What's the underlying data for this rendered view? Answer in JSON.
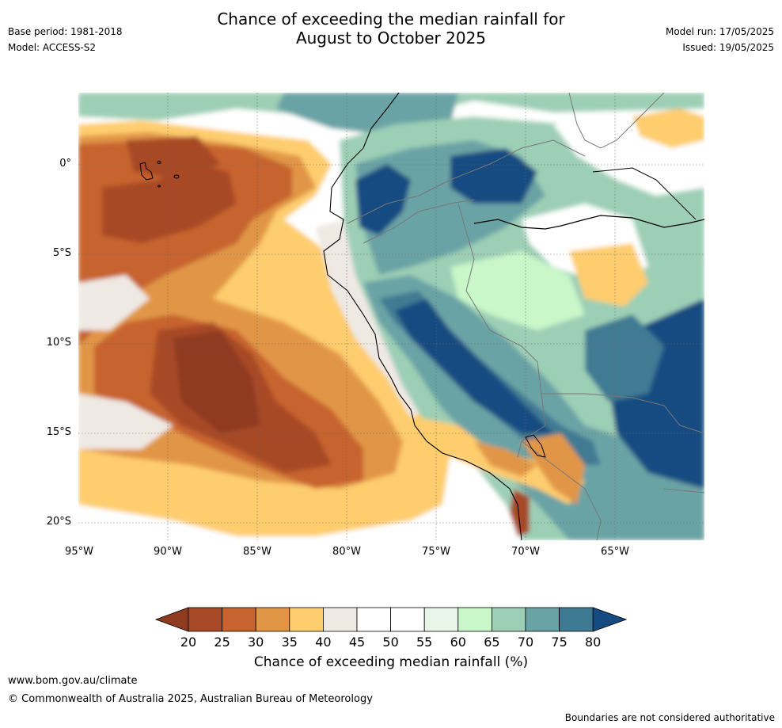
{
  "header": {
    "title_line1": "Chance of exceeding the median rainfall for",
    "title_line2": "August to October 2025",
    "base_period": "Base period: 1981-2018",
    "model": "Model: ACCESS-S2",
    "model_run": "Model run: 17/05/2025",
    "issued": "Issued: 19/05/2025"
  },
  "axes": {
    "lat_labels": [
      "0°",
      "5°S",
      "10°S",
      "15°S",
      "20°S"
    ],
    "lon_labels": [
      "95°W",
      "90°W",
      "85°W",
      "80°W",
      "75°W",
      "70°W",
      "65°W"
    ]
  },
  "colorbar": {
    "label": "Chance of exceeding median rainfall (%)",
    "ticks": [
      "20",
      "25",
      "30",
      "35",
      "40",
      "45",
      "50",
      "55",
      "60",
      "65",
      "70",
      "75",
      "80"
    ],
    "colors": [
      "#8e3b20",
      "#a84a27",
      "#c7632f",
      "#e19646",
      "#fecd6e",
      "#efe9e4",
      "#ffffff",
      "#ffffff",
      "#eaf5ea",
      "#c9f7c9",
      "#9dcfb6",
      "#6aa3a5",
      "#3f7a93",
      "#154b81"
    ]
  },
  "footer": {
    "url": "www.bom.gov.au/climate",
    "copyright": "© Commonwealth of Australia 2025, Australian Bureau of Meteorology",
    "disclaimer": "Boundaries are not considered authoritative"
  }
}
